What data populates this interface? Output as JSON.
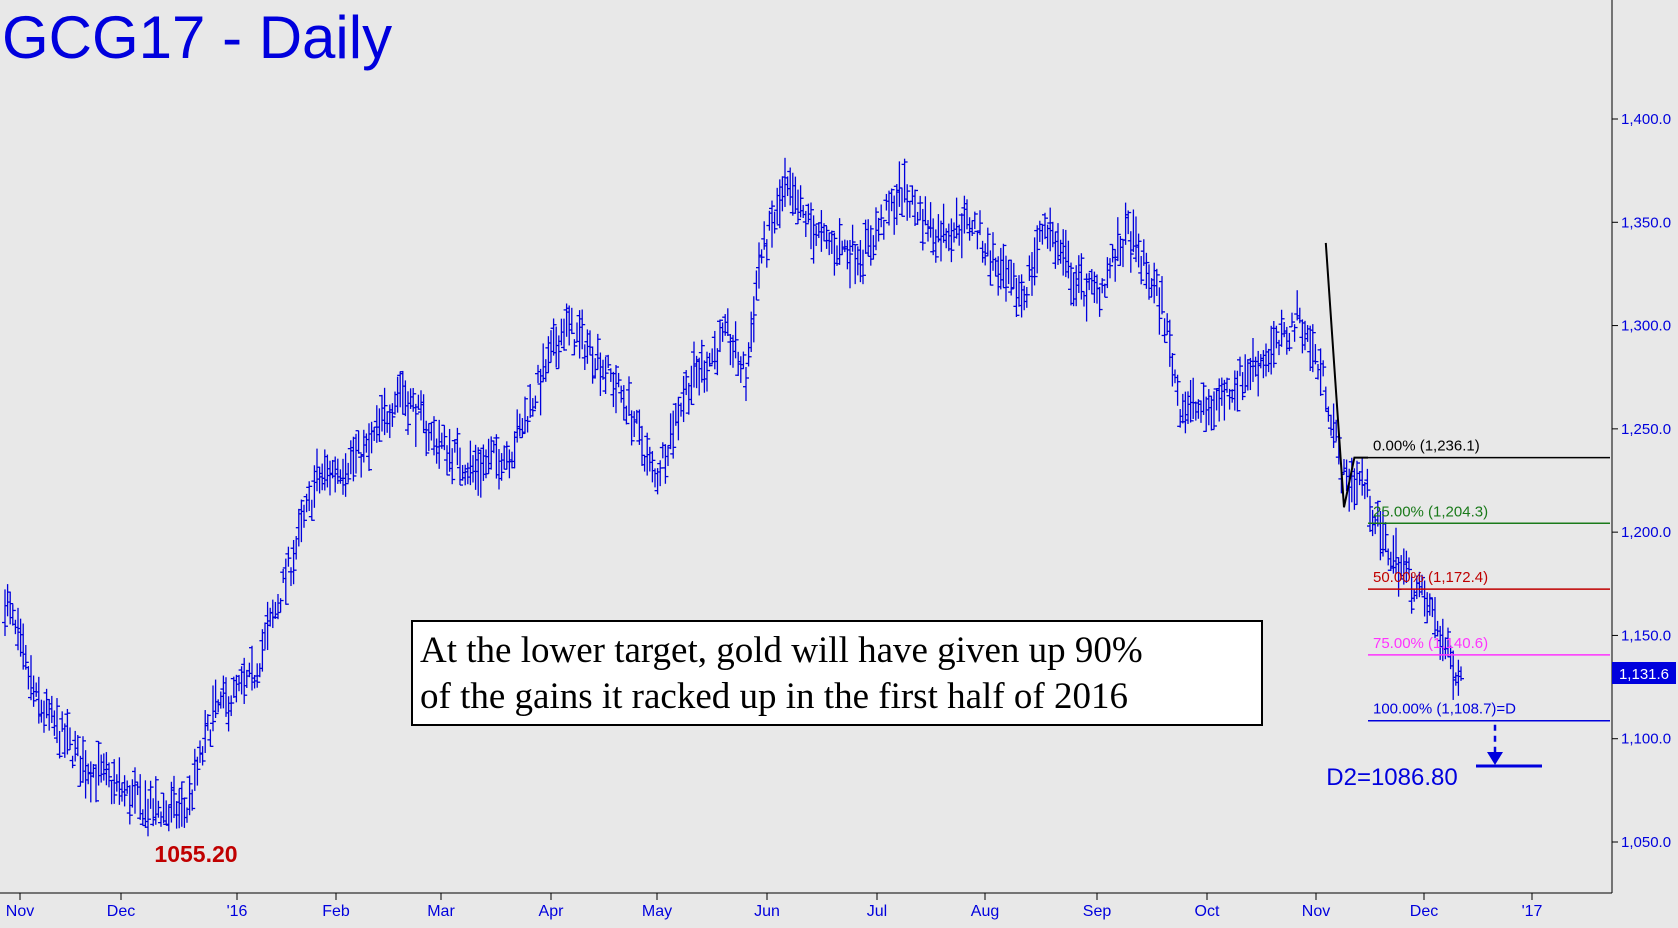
{
  "chart_data": {
    "type": "ohlc",
    "title": "GCG17 - Daily",
    "ylim": [
      1025,
      1430
    ],
    "y_ticks": [
      {
        "value": 1400,
        "label": "1,400.0"
      },
      {
        "value": 1350,
        "label": "1,350.0"
      },
      {
        "value": 1300,
        "label": "1,300.0"
      },
      {
        "value": 1250,
        "label": "1,250.0"
      },
      {
        "value": 1200,
        "label": "1,200.0"
      },
      {
        "value": 1150,
        "label": "1,150.0"
      },
      {
        "value": 1100,
        "label": "1,100.0"
      },
      {
        "value": 1050,
        "label": "1,050.0"
      }
    ],
    "x_ticks": [
      "Nov",
      "Dec",
      "'16",
      "Feb",
      "Mar",
      "Apr",
      "May",
      "Jun",
      "Jul",
      "Aug",
      "Sep",
      "Oct",
      "Nov",
      "Dec",
      "'17"
    ],
    "last_price": "1,131.6",
    "low_label": "1055.20",
    "low_value": 1055.2,
    "fib_levels": [
      {
        "label": "0.00% (1,236.1)",
        "value": 1236.1,
        "color": "#000000"
      },
      {
        "label": "25.00% (1,204.3)",
        "value": 1204.3,
        "color": "#1a7a1a"
      },
      {
        "label": "50.00% (1,172.4)",
        "value": 1172.4,
        "color": "#c00000"
      },
      {
        "label": "75.00% (1,140.6)",
        "value": 1140.6,
        "color": "#ff33ff"
      },
      {
        "label": "100.00% (1,108.7)=D",
        "value": 1108.7,
        "color": "#0000dd"
      }
    ],
    "d2": {
      "label": "D2=1086.80",
      "value": 1086.8
    },
    "annotation": {
      "line1": "At the lower target, gold will have given up 90%",
      "line2": "of the gains it racked up in the first half of 2016"
    },
    "anchors": [
      {
        "t": 0,
        "p": 1168
      },
      {
        "t": 12,
        "p": 1118
      },
      {
        "t": 30,
        "p": 1088
      },
      {
        "t": 55,
        "p": 1066
      },
      {
        "t": 70,
        "p": 1065
      },
      {
        "t": 80,
        "p": 1112
      },
      {
        "t": 95,
        "p": 1128
      },
      {
        "t": 110,
        "p": 1185
      },
      {
        "t": 120,
        "p": 1225
      },
      {
        "t": 140,
        "p": 1240
      },
      {
        "t": 152,
        "p": 1270
      },
      {
        "t": 165,
        "p": 1245
      },
      {
        "t": 180,
        "p": 1230
      },
      {
        "t": 195,
        "p": 1240
      },
      {
        "t": 215,
        "p": 1300
      },
      {
        "t": 228,
        "p": 1285
      },
      {
        "t": 240,
        "p": 1260
      },
      {
        "t": 250,
        "p": 1225
      },
      {
        "t": 262,
        "p": 1270
      },
      {
        "t": 278,
        "p": 1295
      },
      {
        "t": 285,
        "p": 1275
      },
      {
        "t": 290,
        "p": 1330
      },
      {
        "t": 300,
        "p": 1365
      },
      {
        "t": 315,
        "p": 1340
      },
      {
        "t": 330,
        "p": 1335
      },
      {
        "t": 345,
        "p": 1365
      },
      {
        "t": 358,
        "p": 1345
      },
      {
        "t": 372,
        "p": 1350
      },
      {
        "t": 385,
        "p": 1320
      },
      {
        "t": 392,
        "p": 1315
      },
      {
        "t": 400,
        "p": 1350
      },
      {
        "t": 412,
        "p": 1320
      },
      {
        "t": 420,
        "p": 1315
      },
      {
        "t": 432,
        "p": 1345
      },
      {
        "t": 445,
        "p": 1310
      },
      {
        "t": 452,
        "p": 1262
      },
      {
        "t": 462,
        "p": 1258
      },
      {
        "t": 478,
        "p": 1278
      },
      {
        "t": 490,
        "p": 1290
      },
      {
        "t": 498,
        "p": 1305
      },
      {
        "t": 508,
        "p": 1270
      },
      {
        "t": 515,
        "p": 1225
      },
      {
        "t": 522,
        "p": 1225
      },
      {
        "t": 530,
        "p": 1195
      },
      {
        "t": 542,
        "p": 1175
      },
      {
        "t": 550,
        "p": 1158
      },
      {
        "t": 555,
        "p": 1140
      },
      {
        "t": 560,
        "p": 1131.6
      }
    ]
  }
}
